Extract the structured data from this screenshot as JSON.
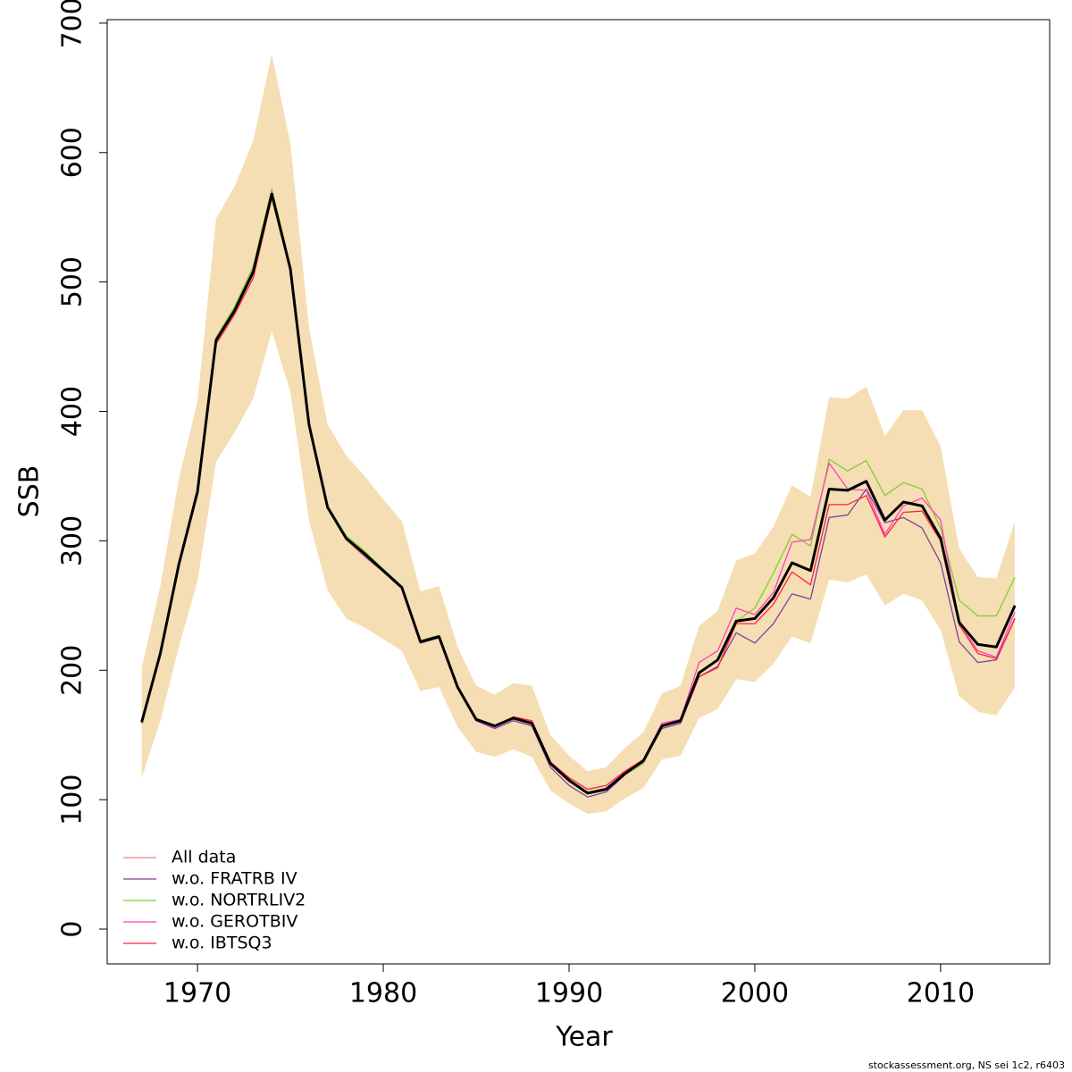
{
  "chart_data": {
    "type": "line",
    "x_label": "Year",
    "y_label": "SSB",
    "footer": "stockassessment.org, NS sei 1c2, r6403",
    "x": [
      1967,
      1968,
      1969,
      1970,
      1971,
      1972,
      1973,
      1974,
      1975,
      1976,
      1977,
      1978,
      1979,
      1980,
      1981,
      1982,
      1983,
      1984,
      1985,
      1986,
      1987,
      1988,
      1989,
      1990,
      1991,
      1992,
      1993,
      1994,
      1995,
      1996,
      1997,
      1998,
      1999,
      2000,
      2001,
      2002,
      2003,
      2004,
      2005,
      2006,
      2007,
      2008,
      2009,
      2010,
      2011,
      2012,
      2013,
      2014
    ],
    "values": [
      160,
      213,
      282,
      338,
      455,
      478,
      508,
      568,
      510,
      390,
      326,
      302,
      290,
      277,
      264,
      222,
      226,
      187,
      162,
      157,
      163,
      159,
      128,
      115,
      105,
      108,
      120,
      130,
      157,
      161,
      198,
      208,
      238,
      240,
      256,
      283,
      277,
      340,
      339,
      346,
      316,
      330,
      327,
      302,
      237,
      220,
      218,
      250
    ],
    "upper": [
      202,
      265,
      348,
      408,
      549,
      574,
      609,
      676,
      607,
      465,
      390,
      366,
      350,
      332,
      315,
      261,
      265,
      218,
      188,
      181,
      190,
      188,
      150,
      134,
      122,
      125,
      140,
      152,
      182,
      188,
      234,
      246,
      285,
      290,
      311,
      343,
      334,
      411,
      410,
      419,
      381,
      401,
      401,
      373,
      294,
      272,
      271,
      315
    ],
    "lower": [
      117,
      161,
      218,
      269,
      361,
      384,
      410,
      462,
      415,
      316,
      262,
      240,
      233,
      224,
      215,
      184,
      187,
      156,
      137,
      133,
      139,
      133,
      107,
      97,
      89,
      91,
      101,
      109,
      131,
      134,
      163,
      170,
      193,
      191,
      205,
      226,
      221,
      270,
      268,
      274,
      250,
      259,
      254,
      231,
      180,
      168,
      165,
      187
    ],
    "band_color": "#f5deb3",
    "line_color": "#000000",
    "series": [
      {
        "name": "All data",
        "color": "#f08080",
        "values": [
          160,
          213,
          282,
          338,
          455,
          478,
          508,
          568,
          510,
          390,
          326,
          302,
          290,
          277,
          264,
          222,
          226,
          187,
          162,
          157,
          163,
          159,
          128,
          115,
          105,
          108,
          120,
          130,
          157,
          161,
          198,
          208,
          238,
          240,
          256,
          283,
          277,
          340,
          339,
          346,
          316,
          330,
          327,
          302,
          237,
          220,
          218,
          250
        ]
      },
      {
        "name": "w.o. FRATRB IV",
        "color": "#8040a0",
        "values": [
          159,
          212,
          281,
          337,
          454,
          477,
          506,
          566,
          509,
          389,
          325,
          301,
          288,
          276,
          263,
          221,
          225,
          186,
          161,
          155,
          161,
          157,
          125,
          111,
          102,
          106,
          119,
          129,
          155,
          159,
          195,
          203,
          229,
          221,
          236,
          259,
          255,
          318,
          320,
          340,
          314,
          318,
          310,
          283,
          222,
          206,
          208,
          240
        ]
      },
      {
        "name": "w.o. NORTRLIV2",
        "color": "#80d030",
        "values": [
          160,
          214,
          283,
          339,
          457,
          481,
          512,
          572,
          512,
          391,
          327,
          304,
          292,
          278,
          265,
          223,
          227,
          188,
          163,
          157,
          163,
          160,
          127,
          115,
          106,
          109,
          119,
          128,
          156,
          161,
          199,
          208,
          238,
          248,
          275,
          305,
          296,
          363,
          354,
          362,
          335,
          345,
          340,
          310,
          254,
          242,
          242,
          272
        ]
      },
      {
        "name": "w.o. GEROTBIV",
        "color": "#ff40c0",
        "values": [
          160,
          213,
          282,
          338,
          455,
          478,
          507,
          567,
          510,
          390,
          326,
          302,
          289,
          277,
          264,
          222,
          226,
          187,
          162,
          156,
          163,
          160,
          127,
          114,
          105,
          109,
          121,
          131,
          159,
          162,
          206,
          215,
          248,
          243,
          260,
          299,
          301,
          360,
          340,
          339,
          305,
          327,
          333,
          316,
          237,
          215,
          210,
          245
        ]
      },
      {
        "name": "w.o. IBTSQ3",
        "color": "#ff2040",
        "values": [
          159,
          212,
          280,
          336,
          452,
          475,
          503,
          565,
          509,
          389,
          326,
          301,
          289,
          277,
          264,
          222,
          226,
          187,
          162,
          157,
          164,
          161,
          129,
          117,
          108,
          111,
          122,
          131,
          157,
          160,
          195,
          202,
          236,
          236,
          251,
          276,
          266,
          328,
          328,
          335,
          303,
          322,
          323,
          300,
          235,
          213,
          209,
          240
        ]
      }
    ],
    "xlim": [
      1965.14,
      2015.87
    ],
    "ylim": [
      -26.9,
      702.7
    ],
    "xticks": [
      1970,
      1980,
      1990,
      2000,
      2010
    ],
    "yticks": [
      0,
      100,
      200,
      300,
      400,
      500,
      600,
      700
    ],
    "legend": "bottom-left"
  }
}
